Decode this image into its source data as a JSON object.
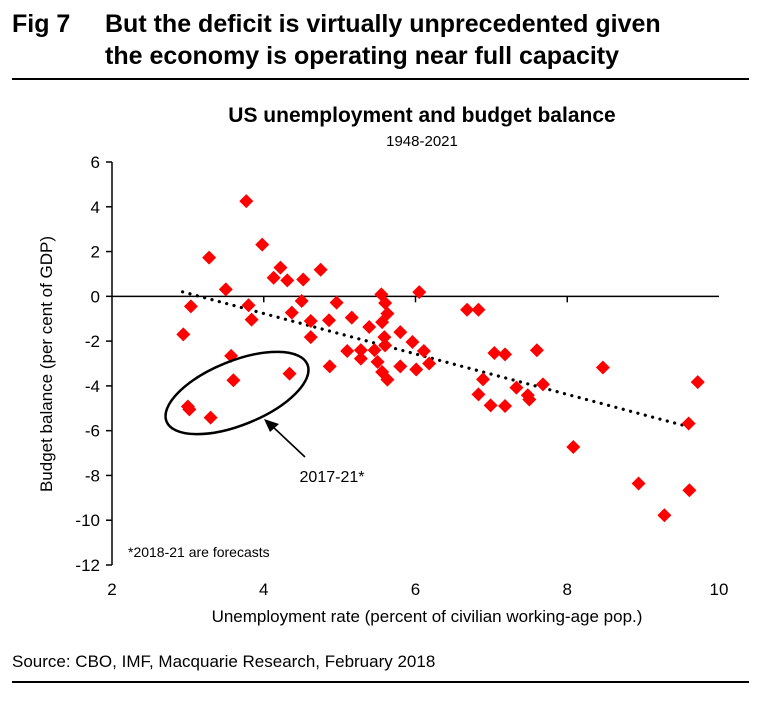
{
  "figure": {
    "number": "Fig 7",
    "title_line1": "But the deficit is virtually unprecedented given",
    "title_line2": "the economy is operating near full capacity",
    "source": "Source: CBO, IMF, Macquarie Research, February 2018"
  },
  "chart_data": {
    "type": "scatter",
    "title": "US unemployment and budget balance",
    "subtitle": "1948-2021",
    "xlabel": "Unemployment  rate (percent of civilian working-age pop.)",
    "ylabel": "Budget balance (per cent of GDP)",
    "xlim": [
      2,
      10
    ],
    "ylim": [
      -12,
      6
    ],
    "xticks": [
      2,
      4,
      6,
      8,
      10
    ],
    "yticks": [
      6,
      4,
      2,
      0,
      -2,
      -4,
      -6,
      -8,
      -10,
      -12
    ],
    "grid": false,
    "marker_color": "#ff0000",
    "marker": "diamond",
    "series": [
      {
        "name": "US unemployment vs budget balance",
        "points": [
          [
            3.77,
            4.25
          ],
          [
            3.98,
            2.31
          ],
          [
            3.28,
            1.73
          ],
          [
            4.22,
            1.28
          ],
          [
            4.13,
            0.83
          ],
          [
            4.31,
            0.71
          ],
          [
            4.52,
            0.75
          ],
          [
            4.75,
            1.19
          ],
          [
            3.5,
            0.31
          ],
          [
            3.04,
            -0.45
          ],
          [
            3.8,
            -0.4
          ],
          [
            3.84,
            -1.04
          ],
          [
            4.5,
            -0.21
          ],
          [
            4.37,
            -0.73
          ],
          [
            4.62,
            -1.1
          ],
          [
            4.62,
            -1.82
          ],
          [
            4.96,
            -0.28
          ],
          [
            4.86,
            -1.07
          ],
          [
            5.16,
            -0.95
          ],
          [
            2.94,
            -1.7
          ],
          [
            5.55,
            0.09
          ],
          [
            6.05,
            0.19
          ],
          [
            5.6,
            -0.3
          ],
          [
            5.63,
            -0.77
          ],
          [
            5.39,
            -1.37
          ],
          [
            5.56,
            -1.15
          ],
          [
            5.8,
            -1.6
          ],
          [
            5.96,
            -2.04
          ],
          [
            5.59,
            -1.82
          ],
          [
            5.6,
            -2.19
          ],
          [
            6.68,
            -0.6
          ],
          [
            6.83,
            -0.6
          ],
          [
            5.1,
            -2.44
          ],
          [
            5.28,
            -2.4
          ],
          [
            5.28,
            -2.78
          ],
          [
            5.46,
            -2.4
          ],
          [
            5.5,
            -2.93
          ],
          [
            4.87,
            -3.13
          ],
          [
            5.8,
            -3.13
          ],
          [
            6.11,
            -2.44
          ],
          [
            6.18,
            -3.0
          ],
          [
            6.01,
            -3.27
          ],
          [
            5.56,
            -3.38
          ],
          [
            5.63,
            -3.72
          ],
          [
            3.57,
            -2.66
          ],
          [
            3.6,
            -3.75
          ],
          [
            4.34,
            -3.45
          ],
          [
            3.0,
            -4.92
          ],
          [
            3.02,
            -5.05
          ],
          [
            3.3,
            -5.42
          ],
          [
            7.04,
            -2.53
          ],
          [
            7.18,
            -2.59
          ],
          [
            7.6,
            -2.41
          ],
          [
            6.89,
            -3.71
          ],
          [
            6.83,
            -4.38
          ],
          [
            6.99,
            -4.87
          ],
          [
            7.18,
            -4.9
          ],
          [
            7.33,
            -4.08
          ],
          [
            7.48,
            -4.42
          ],
          [
            7.5,
            -4.61
          ],
          [
            7.68,
            -3.93
          ],
          [
            8.47,
            -3.18
          ],
          [
            9.72,
            -3.83
          ],
          [
            9.6,
            -5.68
          ],
          [
            8.08,
            -6.73
          ],
          [
            8.94,
            -8.36
          ],
          [
            9.61,
            -8.66
          ],
          [
            9.28,
            -9.78
          ]
        ]
      }
    ],
    "trendline": {
      "style": "dotted",
      "color": "#000000",
      "from": [
        2.93,
        0.2
      ],
      "to": [
        9.66,
        -5.88
      ]
    },
    "annotations": {
      "highlight_label": "2017-21*",
      "highlight_points": "2017-21",
      "footnote": "*2018-21 are forecasts"
    }
  }
}
